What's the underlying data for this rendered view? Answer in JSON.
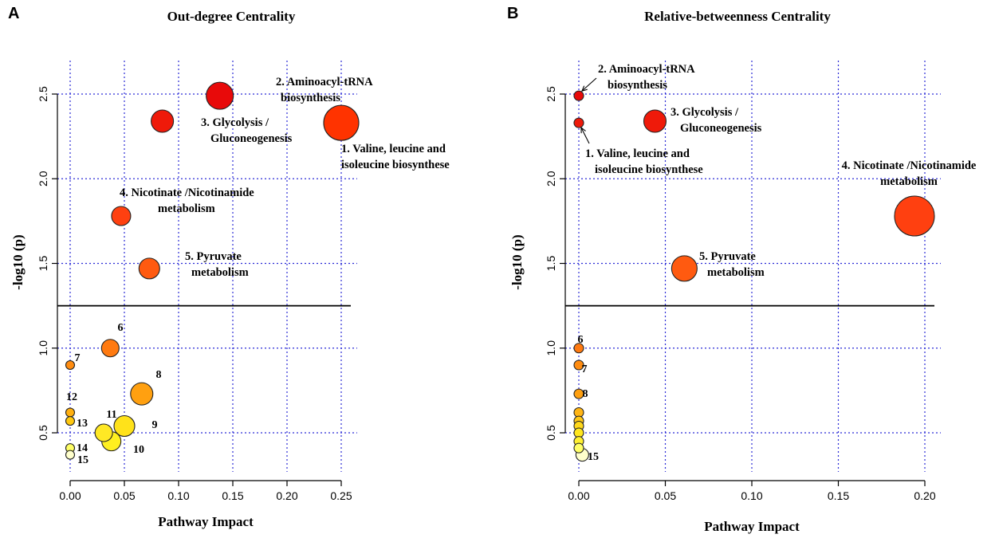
{
  "panels": {
    "A": {
      "letter": "A"
    },
    "B": {
      "letter": "B"
    }
  },
  "chart_data": [
    {
      "type": "scatter",
      "panel": "A",
      "title": "Out-degree Centrality",
      "xlabel": "Pathway Impact",
      "ylabel": "-log10 (p)",
      "xlim": [
        0,
        0.25
      ],
      "ylim": [
        0.35,
        2.5
      ],
      "xticks": [
        0,
        0.05,
        0.1,
        0.15,
        0.2,
        0.25
      ],
      "xtick_labels": [
        "0.00",
        "0.05",
        "0.10",
        "0.15",
        "0.20",
        "0.25"
      ],
      "yticks": [
        0.5,
        1.0,
        1.5,
        2.0,
        2.5
      ],
      "ytick_labels": [
        "0.5",
        "1.0",
        "1.5",
        "2.0",
        "2.5"
      ],
      "threshold": 1.25,
      "grid": true,
      "points": [
        {
          "id": "1",
          "x": 0.25,
          "y": 2.33,
          "r": 22,
          "color": "#ff3300",
          "label": [
            "1. Valine, leucine and",
            "isoleucine biosynthese"
          ]
        },
        {
          "id": "2",
          "x": 0.138,
          "y": 2.49,
          "r": 17,
          "color": "#e80a0a",
          "label": [
            "2. Aminoacyl-tRNA",
            "biosynthesis"
          ]
        },
        {
          "id": "3",
          "x": 0.085,
          "y": 2.34,
          "r": 14,
          "color": "#ef1a0a",
          "label": [
            "3. Glycolysis /",
            "Gluconeogenesis"
          ]
        },
        {
          "id": "4",
          "x": 0.047,
          "y": 1.78,
          "r": 12,
          "color": "#ff4010",
          "label": [
            "4. Nicotinate /Nicotinamide",
            "metabolism"
          ]
        },
        {
          "id": "5",
          "x": 0.073,
          "y": 1.47,
          "r": 13,
          "color": "#ff5a10",
          "label": [
            "5. Pyruvate",
            "metabolism"
          ]
        },
        {
          "id": "6",
          "x": 0.037,
          "y": 1.0,
          "r": 11,
          "color": "#ff7a10",
          "label": [
            "6"
          ]
        },
        {
          "id": "7",
          "x": 0.0,
          "y": 0.9,
          "r": 5.5,
          "color": "#ff8c10",
          "label": [
            "7"
          ]
        },
        {
          "id": "8",
          "x": 0.066,
          "y": 0.73,
          "r": 14,
          "color": "#ffa010",
          "label": [
            "8"
          ]
        },
        {
          "id": "9",
          "x": 0.05,
          "y": 0.54,
          "r": 13,
          "color": "#ffe21a",
          "label": [
            "9"
          ]
        },
        {
          "id": "10",
          "x": 0.038,
          "y": 0.45,
          "r": 12,
          "color": "#fff020",
          "label": [
            "10"
          ]
        },
        {
          "id": "11",
          "x": 0.031,
          "y": 0.5,
          "r": 11,
          "color": "#ffe825",
          "label": [
            "11"
          ]
        },
        {
          "id": "12",
          "x": 0.0,
          "y": 0.62,
          "r": 5.5,
          "color": "#ffb010",
          "label": [
            "12"
          ]
        },
        {
          "id": "13",
          "x": 0.0,
          "y": 0.57,
          "r": 5.5,
          "color": "#ffc810",
          "label": [
            "13"
          ]
        },
        {
          "id": "14",
          "x": 0.0,
          "y": 0.41,
          "r": 5.5,
          "color": "#ffff66",
          "label": [
            "14"
          ]
        },
        {
          "id": "15",
          "x": 0.0,
          "y": 0.37,
          "r": 5.5,
          "color": "#ffffcc",
          "label": [
            "15"
          ]
        }
      ]
    },
    {
      "type": "scatter",
      "panel": "B",
      "title": "Relative-betweenness Centrality",
      "xlabel": "Pathway Impact",
      "ylabel": "-log10 (p)",
      "xlim": [
        0,
        0.2
      ],
      "ylim": [
        0.35,
        2.5
      ],
      "xticks": [
        0,
        0.05,
        0.1,
        0.15,
        0.2
      ],
      "xtick_labels": [
        "0.00",
        "0.05",
        "0.10",
        "0.15",
        "0.20"
      ],
      "yticks": [
        0.5,
        1.0,
        1.5,
        2.0,
        2.5
      ],
      "ytick_labels": [
        "0.5",
        "1.0",
        "1.5",
        "2.0",
        "2.5"
      ],
      "threshold": 1.25,
      "grid": true,
      "points": [
        {
          "id": "1",
          "x": 0.0,
          "y": 2.33,
          "r": 6,
          "color": "#ee1a0a",
          "label": [
            "1. Valine, leucine and",
            "isoleucine biosynthese"
          ]
        },
        {
          "id": "2",
          "x": 0.0,
          "y": 2.49,
          "r": 6,
          "color": "#e80a0a",
          "label": [
            "2. Aminoacyl-tRNA",
            "biosynthesis"
          ]
        },
        {
          "id": "3",
          "x": 0.044,
          "y": 2.34,
          "r": 14,
          "color": "#ef1a0a",
          "label": [
            "3. Glycolysis /",
            "Gluconeogenesis"
          ]
        },
        {
          "id": "4",
          "x": 0.194,
          "y": 1.78,
          "r": 25,
          "color": "#ff4010",
          "label": [
            "4. Nicotinate /Nicotinamide",
            "metabolism"
          ]
        },
        {
          "id": "5",
          "x": 0.061,
          "y": 1.47,
          "r": 16,
          "color": "#ff5a10",
          "label": [
            "5. Pyruvate",
            "metabolism"
          ]
        },
        {
          "id": "6",
          "x": 0.0,
          "y": 1.0,
          "r": 6,
          "color": "#ff7a10",
          "label": [
            "6"
          ]
        },
        {
          "id": "7",
          "x": 0.0,
          "y": 0.9,
          "r": 6,
          "color": "#ff8c10",
          "label": [
            "7"
          ]
        },
        {
          "id": "8",
          "x": 0.0,
          "y": 0.73,
          "r": 6,
          "color": "#ffa010",
          "label": [
            "8"
          ]
        },
        {
          "id": "9",
          "x": 0.0,
          "y": 0.62,
          "r": 6,
          "color": "#ffb515",
          "label": []
        },
        {
          "id": "10",
          "x": 0.0,
          "y": 0.57,
          "r": 6,
          "color": "#ffc815",
          "label": []
        },
        {
          "id": "11",
          "x": 0.0,
          "y": 0.54,
          "r": 6,
          "color": "#ffd81a",
          "label": []
        },
        {
          "id": "12",
          "x": 0.0,
          "y": 0.5,
          "r": 6,
          "color": "#ffe61f",
          "label": []
        },
        {
          "id": "13",
          "x": 0.0,
          "y": 0.45,
          "r": 6,
          "color": "#fff030",
          "label": []
        },
        {
          "id": "14",
          "x": 0.0,
          "y": 0.41,
          "r": 6,
          "color": "#ffff66",
          "label": []
        },
        {
          "id": "15",
          "x": 0.002,
          "y": 0.37,
          "r": 8,
          "color": "#ffffcc",
          "label": [
            "15"
          ]
        }
      ]
    }
  ]
}
